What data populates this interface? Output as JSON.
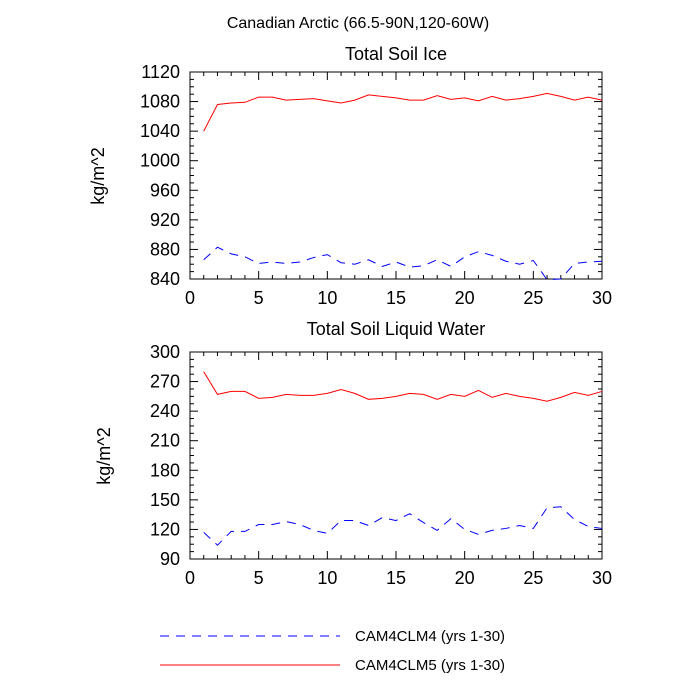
{
  "figure": {
    "title": "Canadian Arctic (66.5-90N,120-60W)"
  },
  "legend": {
    "position": "bottom-center",
    "entries": [
      {
        "label": "CAM4CLM4 (yrs 1-30)",
        "color": "#0000ff",
        "style": "dashed"
      },
      {
        "label": "CAM4CLM5 (yrs 1-30)",
        "color": "#ff0000",
        "style": "solid"
      }
    ]
  },
  "chart_data": [
    {
      "type": "line",
      "title": "Total Soil Ice",
      "xlabel": "",
      "ylabel": "kg/m^2",
      "xlim": [
        0,
        30
      ],
      "ylim": [
        840,
        1120
      ],
      "xticks": [
        0,
        5,
        10,
        15,
        20,
        25,
        30
      ],
      "yticks": [
        840,
        880,
        920,
        960,
        1000,
        1040,
        1080,
        1120
      ],
      "grid": false,
      "x": [
        1,
        2,
        3,
        4,
        5,
        6,
        7,
        8,
        9,
        10,
        11,
        12,
        13,
        14,
        15,
        16,
        17,
        18,
        19,
        20,
        21,
        22,
        23,
        24,
        25,
        26,
        27,
        28,
        29,
        30
      ],
      "series": [
        {
          "name": "CAM4CLM4 (yrs 1-30)",
          "color": "#0000ff",
          "style": "dashed",
          "values": [
            866,
            883,
            874,
            870,
            861,
            863,
            861,
            863,
            869,
            873,
            862,
            860,
            866,
            857,
            863,
            856,
            858,
            866,
            857,
            870,
            877,
            872,
            864,
            860,
            865,
            839,
            840,
            861,
            863,
            864
          ]
        },
        {
          "name": "CAM4CLM5 (yrs 1-30)",
          "color": "#ff0000",
          "style": "solid",
          "values": [
            1040,
            1076,
            1078,
            1079,
            1086,
            1086,
            1082,
            1083,
            1084,
            1081,
            1078,
            1082,
            1089,
            1087,
            1085,
            1082,
            1082,
            1088,
            1083,
            1085,
            1081,
            1087,
            1082,
            1084,
            1087,
            1091,
            1087,
            1082,
            1086,
            1082
          ]
        }
      ]
    },
    {
      "type": "line",
      "title": "Total Soil Liquid Water",
      "xlabel": "",
      "ylabel": "kg/m^2",
      "xlim": [
        0,
        30
      ],
      "ylim": [
        90,
        300
      ],
      "xticks": [
        0,
        5,
        10,
        15,
        20,
        25,
        30
      ],
      "yticks": [
        90,
        120,
        150,
        180,
        210,
        240,
        270,
        300
      ],
      "grid": false,
      "x": [
        1,
        2,
        3,
        4,
        5,
        6,
        7,
        8,
        9,
        10,
        11,
        12,
        13,
        14,
        15,
        16,
        17,
        18,
        19,
        20,
        21,
        22,
        23,
        24,
        25,
        26,
        27,
        28,
        29,
        30
      ],
      "series": [
        {
          "name": "CAM4CLM4 (yrs 1-30)",
          "color": "#0000ff",
          "style": "dashed",
          "values": [
            117,
            104,
            118,
            118,
            125,
            125,
            128,
            125,
            119,
            116,
            129,
            129,
            124,
            132,
            129,
            136,
            127,
            119,
            131,
            120,
            115,
            119,
            121,
            124,
            121,
            142,
            143,
            130,
            123,
            121
          ]
        },
        {
          "name": "CAM4CLM5 (yrs 1-30)",
          "color": "#ff0000",
          "style": "solid",
          "values": [
            280,
            257,
            260,
            260,
            253,
            254,
            257,
            256,
            256,
            258,
            262,
            258,
            252,
            253,
            255,
            258,
            257,
            252,
            257,
            255,
            261,
            254,
            258,
            255,
            253,
            250,
            254,
            259,
            256,
            260
          ]
        }
      ]
    }
  ]
}
